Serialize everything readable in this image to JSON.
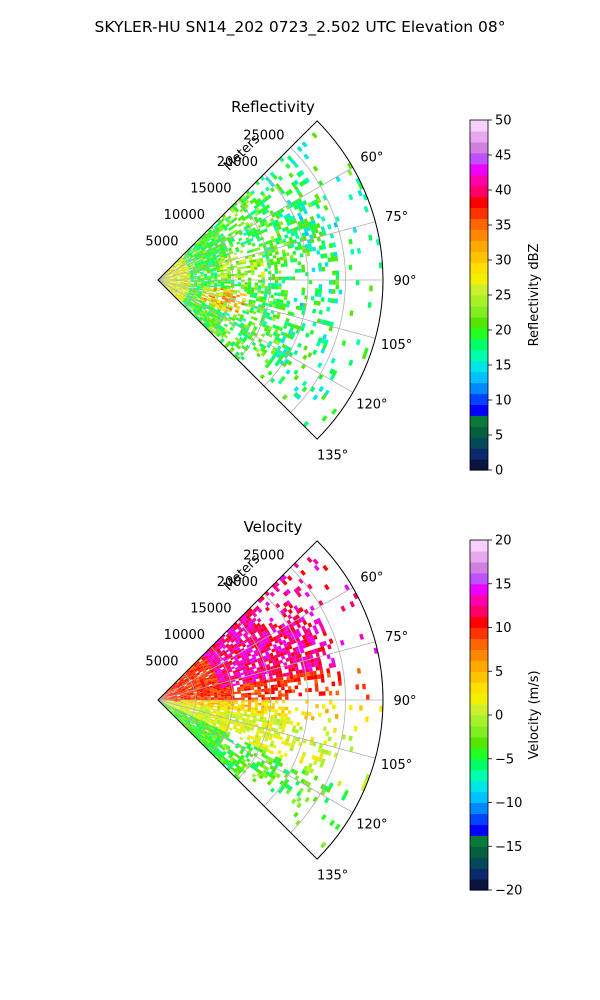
{
  "figure_title": "SKYLER-HU  SN14_202  0723_2.502 UTC Elevation 08°",
  "chart_data": [
    {
      "type": "heatmap",
      "subtype": "polar-sector",
      "title": "Reflectivity",
      "range_axis_label": "Meters",
      "range_ticks": [
        5000,
        10000,
        15000,
        20000,
        25000
      ],
      "range_tick_labels": [
        "5000",
        "10000",
        "15000",
        "20000",
        "25000"
      ],
      "rlim": [
        0,
        30000
      ],
      "angle_ticks": [
        60,
        75,
        90,
        105,
        120,
        135
      ],
      "angle_tick_labels": [
        "60°",
        "75°",
        "90°",
        "105°",
        "120°",
        "135°"
      ],
      "angle_range_deg": [
        45,
        135
      ],
      "grid": true,
      "colorbar": {
        "label": "Reflectivity dBZ",
        "range": [
          0,
          50
        ],
        "ticks": [
          0,
          5,
          10,
          15,
          20,
          25,
          30,
          35,
          40,
          45,
          50
        ],
        "tick_labels": [
          "0",
          "5",
          "10",
          "15",
          "20",
          "25",
          "30",
          "35",
          "40",
          "45",
          "50"
        ],
        "colormap": [
          "#0b1440",
          "#0b2a6b",
          "#05485a",
          "#04603f",
          "#0a7a3a",
          "#0000ff",
          "#0044ff",
          "#0088ff",
          "#00c0ff",
          "#00e5e5",
          "#00ffaa",
          "#00ff66",
          "#22ff22",
          "#55e600",
          "#80ee22",
          "#a6f22a",
          "#ccf030",
          "#f0f000",
          "#ffe000",
          "#ffc400",
          "#ffa800",
          "#ff8800",
          "#ff6600",
          "#ff3300",
          "#ff0000",
          "#ff0066",
          "#ff00aa",
          "#ee00ff",
          "#c050ff",
          "#d080e0",
          "#e8a8f0",
          "#f8d0ff"
        ]
      },
      "field_description_values": "dominant 15-25 dBZ echoes with embedded 30-38 dBZ cores near 7000-10000 m range at 100-110 deg"
    },
    {
      "type": "heatmap",
      "subtype": "polar-sector",
      "title": "Velocity",
      "range_axis_label": "Meters",
      "range_ticks": [
        5000,
        10000,
        15000,
        20000,
        25000
      ],
      "range_tick_labels": [
        "5000",
        "10000",
        "15000",
        "20000",
        "25000"
      ],
      "rlim": [
        0,
        30000
      ],
      "angle_ticks": [
        60,
        75,
        90,
        105,
        120,
        135
      ],
      "angle_tick_labels": [
        "60°",
        "75°",
        "90°",
        "105°",
        "120°",
        "135°"
      ],
      "angle_range_deg": [
        45,
        135
      ],
      "grid": true,
      "colorbar": {
        "label": "Velocity (m/s)",
        "range": [
          -20,
          20
        ],
        "ticks": [
          -20,
          -15,
          -10,
          -5,
          0,
          5,
          10,
          15,
          20
        ],
        "tick_labels": [
          "−20",
          "−15",
          "−10",
          "−5",
          "0",
          "5",
          "10",
          "15",
          "20"
        ],
        "colormap": [
          "#0b1440",
          "#0b2a6b",
          "#05485a",
          "#04603f",
          "#0a7a3a",
          "#0000ff",
          "#0044ff",
          "#0088ff",
          "#00c0ff",
          "#00e5e5",
          "#00ffaa",
          "#00ff66",
          "#22ff22",
          "#55e600",
          "#80ee22",
          "#a6f22a",
          "#ccf030",
          "#f0f000",
          "#ffe000",
          "#ffc400",
          "#ffa800",
          "#ff8800",
          "#ff6600",
          "#ff3300",
          "#ff0000",
          "#ff0066",
          "#ff00aa",
          "#ee00ff",
          "#c050ff",
          "#d080e0",
          "#e8a8f0",
          "#f8d0ff"
        ]
      },
      "field_description_values": "receding 8-12 m/s north of 90 deg, up to 15 m/s near 70 deg; approaching 0 to -6 m/s south of 95 deg"
    }
  ]
}
